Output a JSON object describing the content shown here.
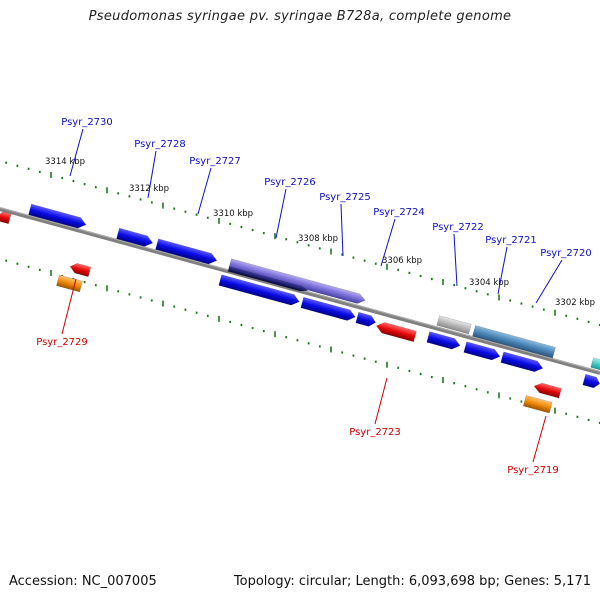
{
  "title": "Pseudomonas syringae pv. syringae B728a, complete genome",
  "footer": {
    "accession": "Accession: NC_007005",
    "summary": "Topology: circular; Length: 6,093,698 bp; Genes: 5,171"
  },
  "colors": {
    "backbone": "#808080",
    "ticks": "#1f7a1f",
    "upper_label": "#1010c0",
    "lower_label": "#cc0000",
    "gene_blue": "#0a0ae6",
    "gene_purple": "#7a6fd6",
    "gene_navy": "#0a0a6e",
    "gene_steel": "#4a86b8",
    "gene_grey": "#b8b8b8",
    "gene_red": "#e60a0a",
    "gene_orange": "#f08a0a",
    "gene_cyan": "#1ad0d0"
  },
  "scale": {
    "unit": "kbp",
    "ticks": [
      {
        "label": "3314 kbp"
      },
      {
        "label": "3312 kbp"
      },
      {
        "label": "3310 kbp"
      },
      {
        "label": "3308 kbp"
      },
      {
        "label": "3306 kbp"
      },
      {
        "label": "3304 kbp"
      },
      {
        "label": "3302 kbp"
      }
    ]
  },
  "upper_labels": [
    {
      "text": "Psyr_2730"
    },
    {
      "text": "Psyr_2728"
    },
    {
      "text": "Psyr_2727"
    },
    {
      "text": "Psyr_2726"
    },
    {
      "text": "Psyr_2725"
    },
    {
      "text": "Psyr_2724"
    },
    {
      "text": "Psyr_2722"
    },
    {
      "text": "Psyr_2721"
    },
    {
      "text": "Psyr_2720"
    }
  ],
  "lower_labels": [
    {
      "text": "Psyr_2729"
    },
    {
      "text": "Psyr_2723"
    },
    {
      "text": "Psyr_2719"
    }
  ]
}
